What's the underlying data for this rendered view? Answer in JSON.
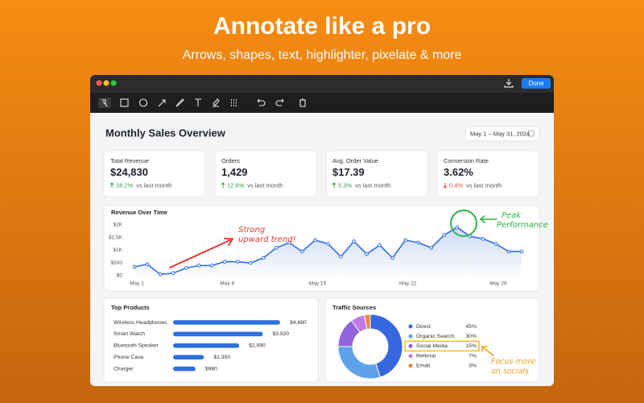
{
  "header": {
    "title": "Annotate like a pro",
    "subtitle": "Arrows, shapes, text, highlighter, pixelate & more"
  },
  "window": {
    "done_button": "Done"
  },
  "dashboard": {
    "title": "Monthly Sales Overview",
    "date_range": "May 1 – May 31, 2024",
    "kpis": [
      {
        "label": "Total Revenue",
        "value": "$24,830",
        "change": "18.2%",
        "note": "vs last month",
        "direction": "up"
      },
      {
        "label": "Orders",
        "value": "1,429",
        "change": "12.6%",
        "note": "vs last month",
        "direction": "up"
      },
      {
        "label": "Avg. Order Value",
        "value": "$17.39",
        "change": "5.3%",
        "note": "vs last month",
        "direction": "up"
      },
      {
        "label": "Conversion Rate",
        "value": "3.62%",
        "change": "0.4%",
        "note": "vs last month",
        "direction": "down"
      }
    ]
  },
  "chart_data": [
    {
      "type": "line",
      "title": "Revenue Over Time",
      "categories": [
        "May 1",
        null,
        null,
        null,
        null,
        null,
        null,
        "May 8",
        null,
        null,
        null,
        null,
        null,
        null,
        "May 15",
        null,
        null,
        null,
        null,
        null,
        null,
        "May 22",
        null,
        null,
        null,
        null,
        null,
        null,
        "May 29",
        null,
        null
      ],
      "values": [
        350,
        450,
        50,
        100,
        300,
        400,
        400,
        550,
        550,
        500,
        700,
        1100,
        1300,
        950,
        1400,
        1250,
        750,
        1350,
        850,
        1200,
        700,
        1400,
        1300,
        1100,
        1600,
        1900,
        1550,
        1450,
        1250,
        950,
        950
      ],
      "color": "#2f6fe0",
      "ylim": [
        0,
        2000
      ],
      "yticks": [
        {
          "value": 0,
          "label": "$0"
        },
        {
          "value": 500,
          "label": "$500"
        },
        {
          "value": 1000,
          "label": "$1K"
        },
        {
          "value": 1500,
          "label": "$1.5K"
        },
        {
          "value": 2000,
          "label": "$2K"
        }
      ],
      "annotations": [
        [
          "Strong",
          "upward trend!"
        ],
        [
          "Peak",
          "Performance"
        ]
      ]
    },
    {
      "type": "hbar",
      "title": "Top Products",
      "categories": [
        "Wireless Headphones",
        "Smart Watch",
        "Bluetooth Speaker",
        "Phone Case",
        "Charger"
      ],
      "values": [
        4680,
        3920,
        2890,
        1350,
        980
      ],
      "value_labels": [
        "$4,680",
        "$3,920",
        "$2,890",
        "$1,350",
        "$980"
      ],
      "color": "#2f6fe0"
    },
    {
      "type": "donut",
      "title": "Traffic Sources",
      "categories": [
        "Direct",
        "Organic Search",
        "Social Media",
        "Referral",
        "Email"
      ],
      "values": [
        45,
        30,
        15,
        7,
        3
      ],
      "value_labels": [
        "45%",
        "30%",
        "15%",
        "7%",
        "3%"
      ],
      "colors": [
        "#3467e0",
        "#5ea3ea",
        "#8e63dc",
        "#c07ae6",
        "#e8873a"
      ],
      "highlight": 2,
      "annotations": [
        [
          "Focus more",
          "on socials"
        ]
      ]
    }
  ]
}
